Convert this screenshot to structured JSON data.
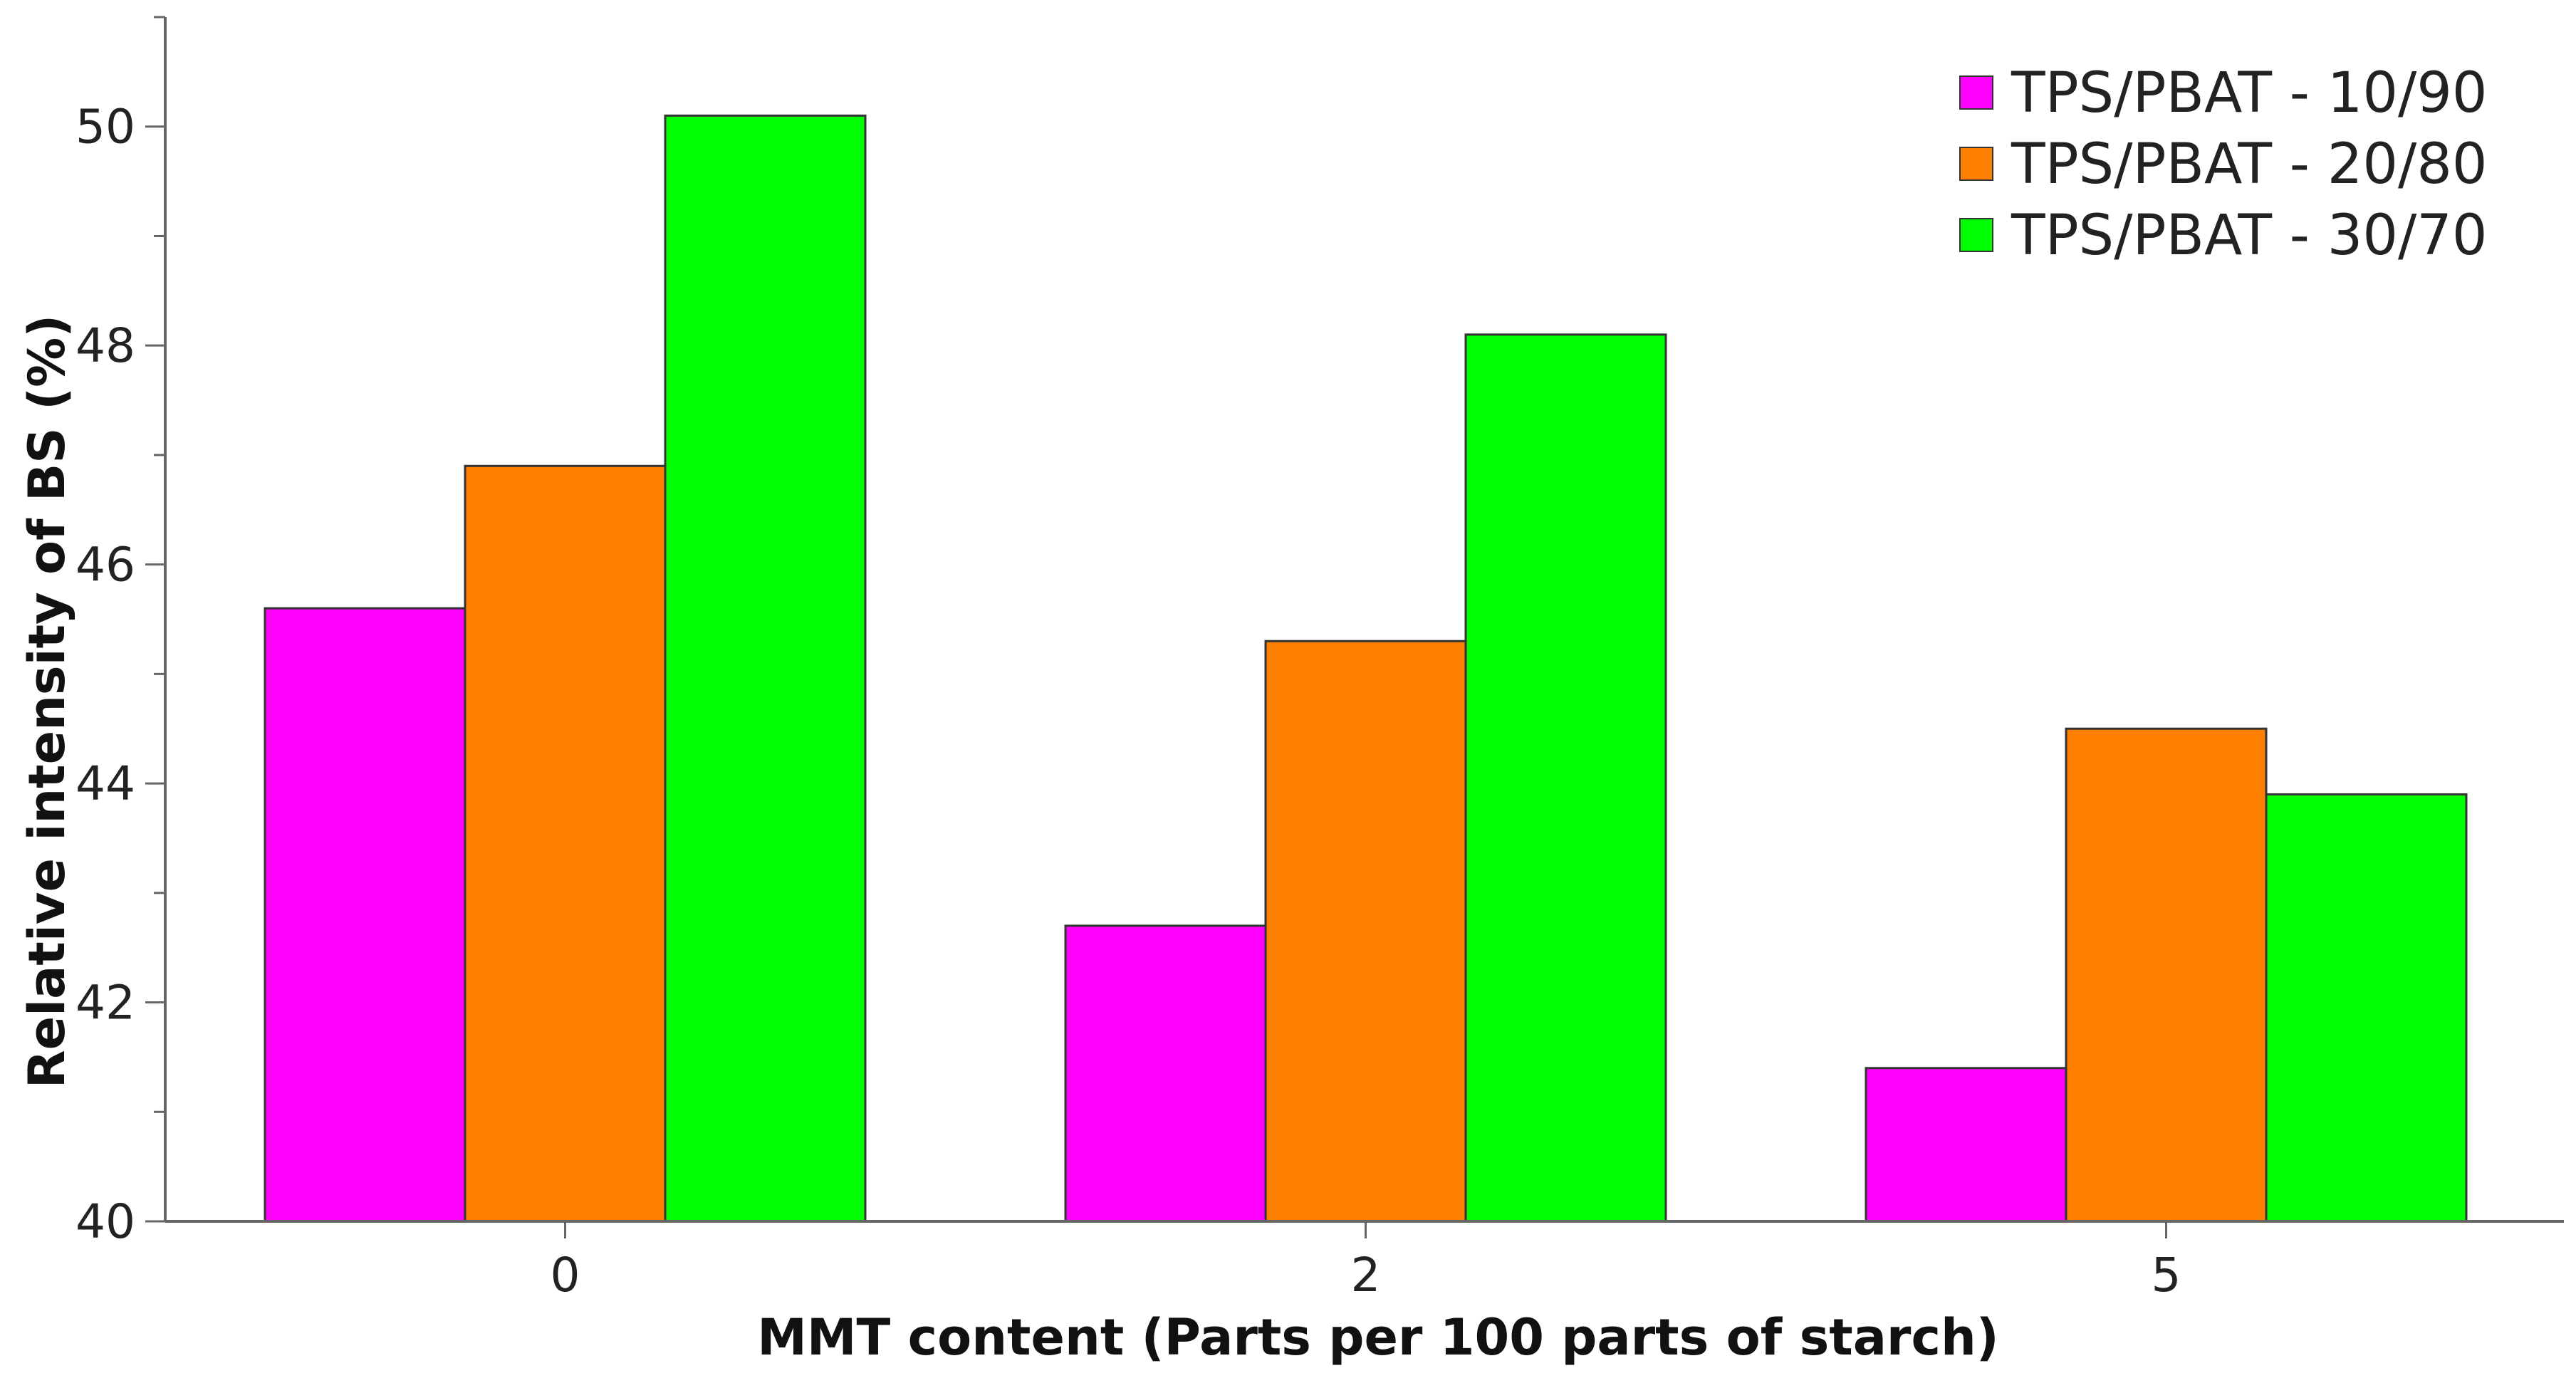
{
  "chart_data": {
    "type": "bar",
    "title": "",
    "xlabel": "MMT content (Parts per 100 parts of starch)",
    "ylabel": "Relative intensity of BS (%)",
    "categories": [
      "0",
      "2",
      "5"
    ],
    "ylim": [
      40,
      51
    ],
    "yticks": [
      "40",
      "42",
      "44",
      "46",
      "48",
      "50"
    ],
    "grid": false,
    "legend_position": "top-right",
    "series": [
      {
        "name": "TPS/PBAT - 10/90",
        "color": "#ff00ff",
        "values": [
          45.6,
          42.7,
          41.4
        ]
      },
      {
        "name": "TPS/PBAT - 20/80",
        "color": "#ff8000",
        "values": [
          46.9,
          45.3,
          44.5
        ]
      },
      {
        "name": "TPS/PBAT - 30/70",
        "color": "#00ff00",
        "values": [
          50.1,
          48.1,
          43.9
        ]
      }
    ]
  }
}
